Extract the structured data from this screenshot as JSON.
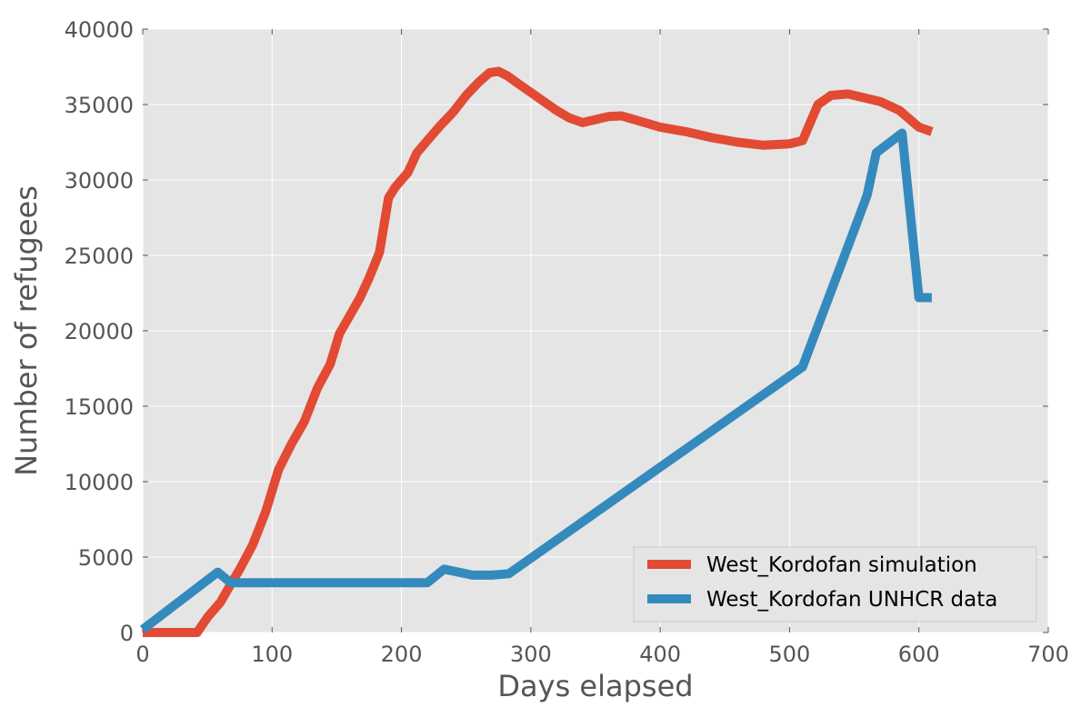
{
  "chart_data": {
    "type": "line",
    "title": "",
    "xlabel": "Days elapsed",
    "ylabel": "Number of refugees",
    "xlim": [
      0,
      700
    ],
    "ylim": [
      0,
      40000
    ],
    "xticks": [
      0,
      100,
      200,
      300,
      400,
      500,
      600,
      700
    ],
    "yticks": [
      0,
      5000,
      10000,
      15000,
      20000,
      25000,
      30000,
      35000,
      40000
    ],
    "grid": true,
    "legend_position": "bottom-right",
    "background": "#e5e5e5",
    "series": [
      {
        "name": "West_Kordofan simulation",
        "color": "#e24a33",
        "x": [
          0,
          20,
          42,
          50,
          60,
          68,
          75,
          85,
          95,
          105,
          115,
          125,
          135,
          145,
          152,
          160,
          168,
          175,
          183,
          190,
          195,
          205,
          212,
          220,
          230,
          240,
          250,
          260,
          268,
          275,
          282,
          290,
          300,
          310,
          320,
          330,
          340,
          350,
          360,
          370,
          380,
          400,
          420,
          440,
          460,
          480,
          500,
          510,
          522,
          532,
          545,
          560,
          570,
          585,
          600,
          610
        ],
        "y": [
          0,
          0,
          0,
          1000,
          2000,
          3200,
          4200,
          5800,
          8000,
          10800,
          12500,
          14000,
          16200,
          17800,
          19800,
          21000,
          22200,
          23500,
          25200,
          28800,
          29500,
          30500,
          31800,
          32600,
          33600,
          34500,
          35600,
          36500,
          37100,
          37200,
          36900,
          36400,
          35800,
          35200,
          34600,
          34100,
          33800,
          34000,
          34200,
          34250,
          34000,
          33500,
          33200,
          32800,
          32500,
          32300,
          32400,
          32600,
          35000,
          35600,
          35700,
          35400,
          35200,
          34600,
          33500,
          33200
        ]
      },
      {
        "name": "West_Kordofan UNHCR data",
        "color": "#348abd",
        "x": [
          0,
          58,
          68,
          220,
          233,
          255,
          270,
          283,
          510,
          550,
          560,
          567,
          587,
          600,
          610
        ],
        "y": [
          200,
          4000,
          3300,
          3300,
          4200,
          3800,
          3800,
          3900,
          17600,
          26700,
          29000,
          31800,
          33100,
          22200,
          22200
        ]
      }
    ]
  }
}
